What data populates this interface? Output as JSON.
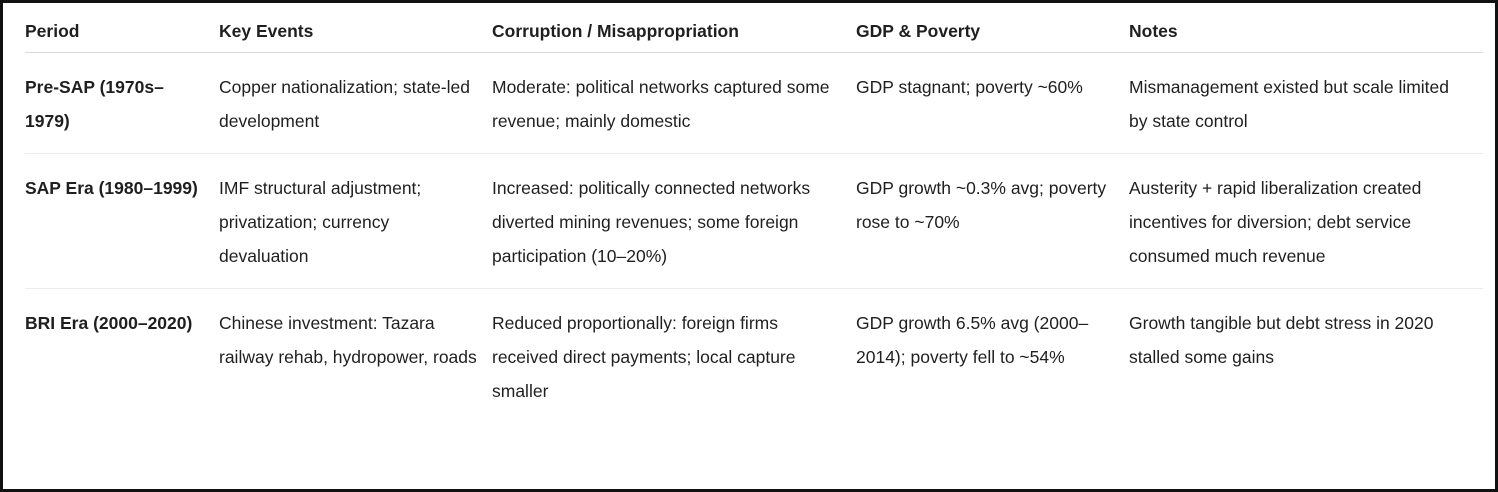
{
  "table": {
    "headers": [
      "Period",
      "Key Events",
      "Corruption / Misappropriation",
      "GDP & Poverty",
      "Notes"
    ],
    "rows": [
      {
        "period": "Pre-SAP (1970s–1979)",
        "events": "Copper nationalization; state-led development",
        "corruption": "Moderate: political networks captured some revenue; mainly domestic",
        "gdp": "GDP stagnant; poverty ~60%",
        "notes": "Mismanagement existed but scale limited by state control"
      },
      {
        "period": "SAP Era (1980–1999)",
        "events": "IMF structural adjustment; privatization; currency devaluation",
        "corruption": "Increased: politically connected networks diverted mining revenues; some foreign participation (10–20%)",
        "gdp": "GDP growth ~0.3% avg; poverty rose to ~70%",
        "notes": "Austerity + rapid liberalization created incentives for diversion; debt service consumed much revenue"
      },
      {
        "period": "BRI Era (2000–2020)",
        "events": "Chinese investment: Tazara railway rehab, hydropower, roads",
        "corruption": "Reduced proportionally: foreign firms received direct payments; local capture smaller",
        "gdp": "GDP growth 6.5% avg (2000–2014); poverty fell to ~54%",
        "notes": "Growth tangible but debt stress in 2020 stalled some gains"
      }
    ]
  }
}
